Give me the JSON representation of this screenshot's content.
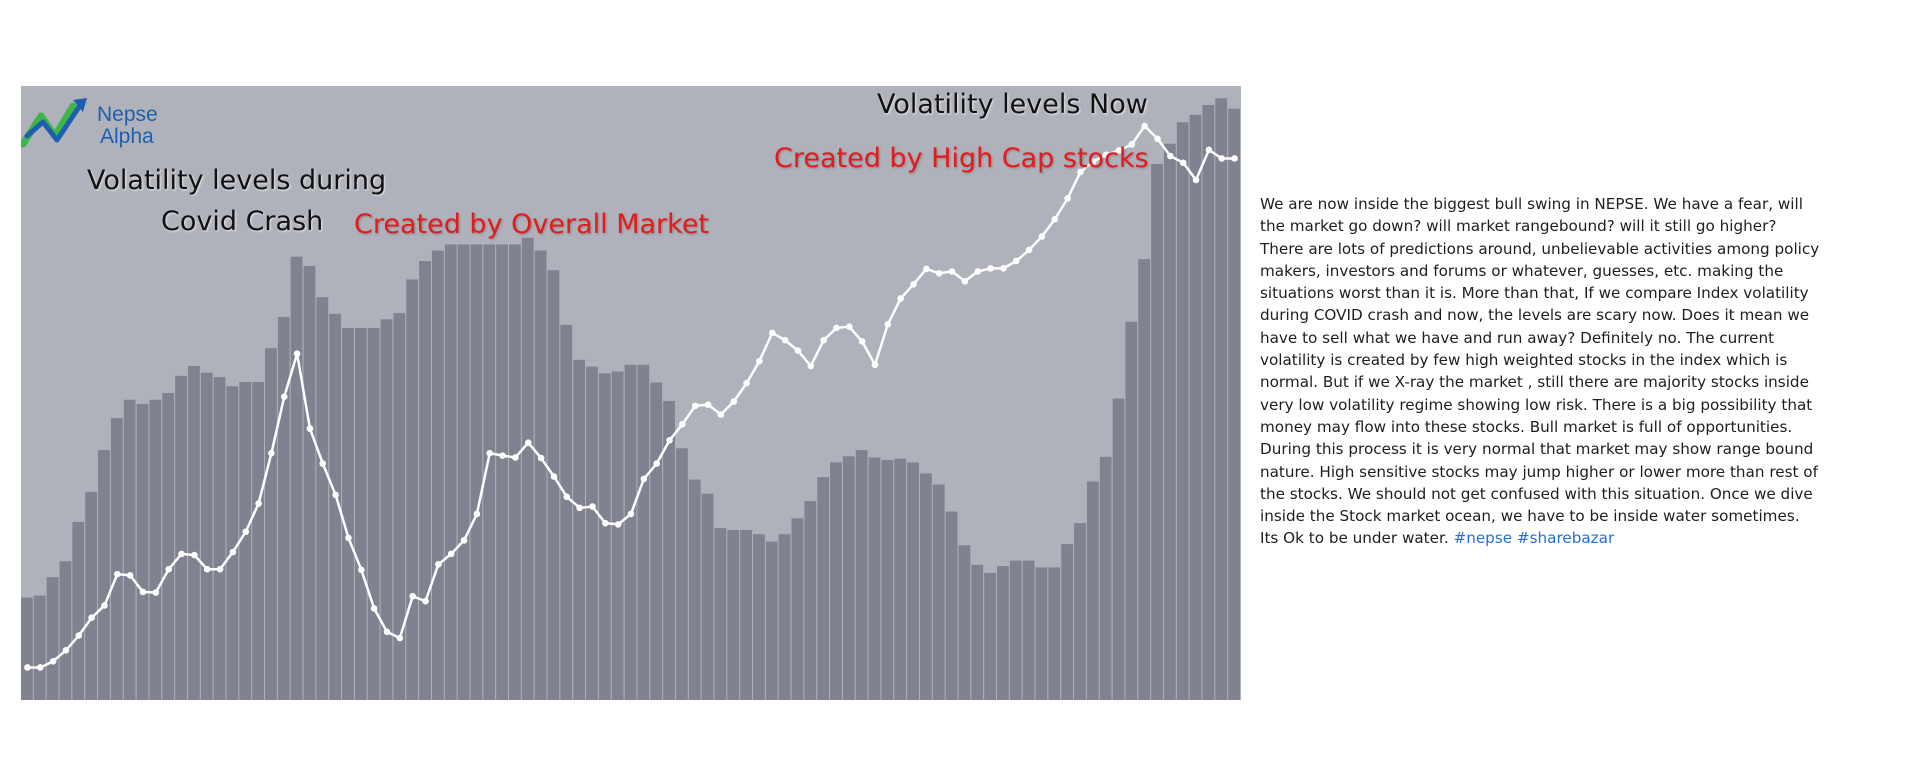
{
  "logo": {
    "line1": "Nepse",
    "line2": "Alpha"
  },
  "annotations": {
    "now_title": "Volatility levels Now",
    "now_subtitle": "Created by High Cap stocks",
    "covid_title_line1": "Volatility levels during",
    "covid_title_line2": "Covid Crash",
    "covid_subtitle": "Created by Overall Market"
  },
  "post": {
    "body": "We are now inside the biggest bull swing in NEPSE. We have a fear, will the market go down? will market rangebound? will it still go higher? There are lots of predictions around, unbelievable activities among policy makers, investors and forums or whatever,  guesses, etc. making the situations worst than it is. More than that, If we compare Index volatility during COVID crash and now, the levels are scary now. Does it mean we have to sell what we have and run away? Definitely no. The current volatility is created by few high weighted stocks in the index which is normal. But if we X-ray the market , still there are majority stocks inside very low volatility regime showing low risk. There is a big possibility that money may flow into these stocks. Bull market is full of opportunities. During this process it is very normal that market may show range bound nature. High sensitive stocks may jump higher or lower more than rest of the stocks. We should not get confused with this situation. Once we dive inside the Stock market ocean, we have to be inside water sometimes. Its Ok to be under water.",
    "hashtags": [
      "#nepse",
      "#sharebazar"
    ]
  },
  "colors": {
    "background": "#b0b2bb",
    "bars": "#808290",
    "line": "#ffffff",
    "red_text": "#e8191a",
    "logo_blue": "#1d5fae",
    "logo_green": "#3cb54a",
    "hashtag": "#216fdb"
  },
  "chart_data": {
    "type": "bar",
    "ylim": [
      0,
      100
    ],
    "grid": false,
    "legend": "none",
    "series": [
      {
        "type": "bar",
        "values": [
          16.7,
          17.0,
          20.0,
          22.6,
          29.0,
          33.9,
          40.7,
          45.9,
          48.9,
          48.2,
          48.9,
          50.0,
          52.8,
          54.4,
          53.3,
          52.6,
          51.1,
          51.8,
          51.8,
          57.3,
          62.4,
          72.2,
          70.7,
          65.6,
          62.9,
          60.6,
          60.6,
          60.6,
          62.0,
          63.0,
          68.5,
          71.5,
          73.2,
          74.2,
          74.2,
          74.2,
          74.2,
          74.2,
          74.2,
          75.3,
          73.2,
          70.0,
          61.1,
          55.4,
          54.3,
          53.2,
          53.5,
          54.6,
          54.6,
          51.7,
          48.7,
          41.0,
          35.9,
          33.6,
          28.0,
          27.7,
          27.7,
          27.0,
          25.8,
          27.0,
          29.6,
          32.4,
          36.3,
          38.7,
          39.7,
          40.7,
          39.5,
          39.1,
          39.3,
          38.7,
          36.9,
          35.1,
          30.7,
          25.2,
          22.0,
          20.7,
          21.8,
          22.7,
          22.7,
          21.6,
          21.6,
          25.4,
          28.8,
          35.6,
          39.6,
          49.1,
          61.6,
          71.8,
          87.3,
          90.6,
          94.1,
          95.3,
          96.9,
          98.0,
          96.3
        ]
      },
      {
        "type": "line",
        "values": [
          5.3,
          5.3,
          6.3,
          8.1,
          10.5,
          13.4,
          15.4,
          20.5,
          20.3,
          17.6,
          17.5,
          21.3,
          23.8,
          23.6,
          21.3,
          21.3,
          24.1,
          27.4,
          32.0,
          40.2,
          49.4,
          56.4,
          44.2,
          38.5,
          33.4,
          26.4,
          21.2,
          14.9,
          11.1,
          10.1,
          16.9,
          16.1,
          22.1,
          23.8,
          26.0,
          30.3,
          40.2,
          39.8,
          39.5,
          41.9,
          39.4,
          36.4,
          33.1,
          31.3,
          31.5,
          28.8,
          28.6,
          30.3,
          36.0,
          38.5,
          42.3,
          44.9,
          47.9,
          48.1,
          46.5,
          48.6,
          51.6,
          55.2,
          59.8,
          58.6,
          56.9,
          54.4,
          58.6,
          60.6,
          60.8,
          58.4,
          54.6,
          61.2,
          65.4,
          67.7,
          70.2,
          69.5,
          69.8,
          68.2,
          69.8,
          70.3,
          70.3,
          71.5,
          73.3,
          75.5,
          78.3,
          81.7,
          86.0,
          87.7,
          88.8,
          89.5,
          90.5,
          93.5,
          91.4,
          88.6,
          87.5,
          84.7,
          89.6,
          88.2,
          88.2
        ]
      }
    ]
  }
}
